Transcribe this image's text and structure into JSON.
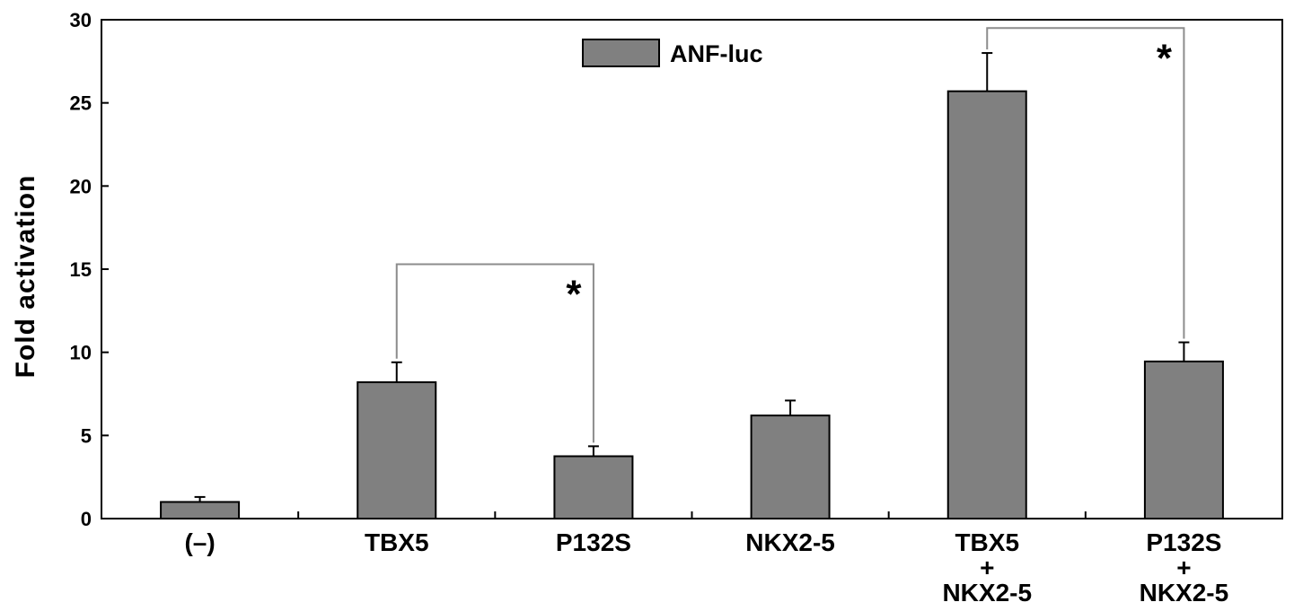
{
  "chart_data": {
    "type": "bar",
    "title": "",
    "xlabel": "",
    "ylabel": "Fold  activation",
    "ylim": [
      0,
      30
    ],
    "yticks": [
      "0",
      "5",
      "10",
      "15",
      "20",
      "25",
      "30"
    ],
    "categories": [
      [
        "(–)"
      ],
      [
        "TBX5"
      ],
      [
        "P132S"
      ],
      [
        "NKX2-5"
      ],
      [
        "TBX5",
        "+",
        "NKX2-5"
      ],
      [
        "P132S",
        "+",
        "NKX2-5"
      ]
    ],
    "series": [
      {
        "name": "ANF-luc",
        "values": [
          1.0,
          8.2,
          3.75,
          6.2,
          25.7,
          9.45
        ],
        "errors": [
          0.3,
          1.2,
          0.6,
          0.9,
          2.3,
          1.15
        ]
      }
    ],
    "legend": {
      "position": "top-center"
    },
    "grid": false,
    "annotations": [
      {
        "type": "significance",
        "from_category": 1,
        "to_category": 2,
        "level": 15.3,
        "label": "*"
      },
      {
        "type": "significance",
        "from_category": 4,
        "to_category": 5,
        "level": 29.5,
        "label": "*"
      }
    ],
    "colors": {
      "bar": "#808080",
      "bar_edge": "#000000",
      "bracket": "#8c8c8c",
      "axis": "#000000"
    }
  }
}
